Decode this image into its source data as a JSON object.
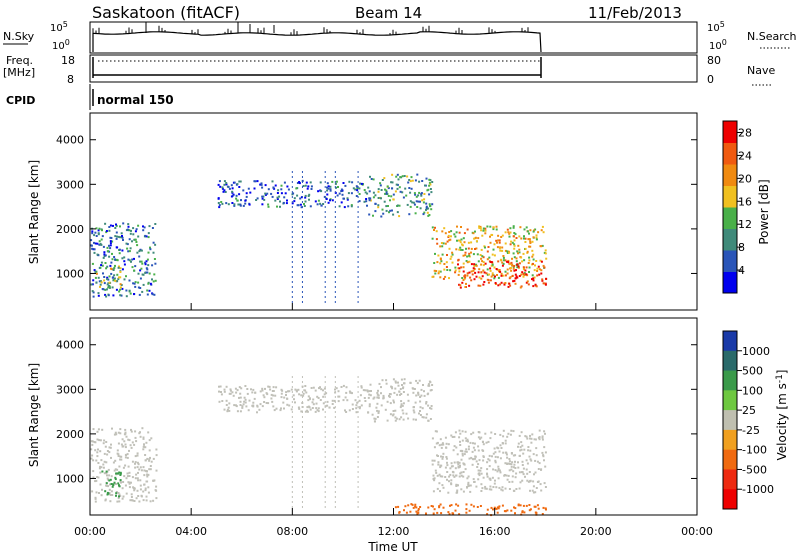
{
  "header": {
    "title": "Saskatoon (fitACF)",
    "beam": "Beam 14",
    "date": "11/Feb/2013"
  },
  "top_panels": {
    "nsky_label": "N.Sky",
    "nsky_ticks": [
      "10^5",
      "10^0"
    ],
    "nsearch_label": "N.Search",
    "freq_label": "Freq.",
    "freq_unit": "[MHz]",
    "freq_ticks": [
      "18",
      "8"
    ],
    "nave_label": "Nave",
    "nave_ticks": [
      "80",
      "0"
    ],
    "cpid_label": "CPID",
    "cpid_value": "normal 150"
  },
  "time_axis": {
    "label": "Time UT",
    "ticks": [
      "00:00",
      "04:00",
      "08:00",
      "12:00",
      "16:00",
      "20:00",
      "00:00"
    ]
  },
  "colors": {
    "power_scale": [
      "#0000ee",
      "#2a55b8",
      "#3f8a7a",
      "#49b049",
      "#f0c020",
      "#f08a10",
      "#f05a10",
      "#ee0000"
    ],
    "velocity_scale": [
      "#1a3aa8",
      "#2a6a6a",
      "#3a9a4a",
      "#6ec840",
      "#bfbfb0",
      "#f0a020",
      "#f06a10",
      "#ee2a10",
      "#ee0000"
    ],
    "grey": "#c0c0b8"
  },
  "chart_data": [
    {
      "type": "heatmap",
      "title": "",
      "xlabel": "",
      "ylabel": "Slant Range [km]",
      "xlim": [
        0,
        24
      ],
      "ylim": [
        180,
        4600
      ],
      "y_ticks": [
        "1000",
        "2000",
        "3000",
        "4000"
      ],
      "colorbar": {
        "label": "Power [dB]",
        "ticks": [
          "4",
          "8",
          "12",
          "16",
          "20",
          "24",
          "28"
        ],
        "range": [
          0,
          30
        ]
      },
      "regions": [
        {
          "t0": 0.0,
          "t1": 2.6,
          "r0": 500,
          "r1": 2150,
          "value": 8
        },
        {
          "t0": 0.2,
          "t1": 1.2,
          "r0": 700,
          "r1": 1200,
          "value": 14
        },
        {
          "t0": 5.0,
          "t1": 11.0,
          "r0": 2500,
          "r1": 3100,
          "value": 6
        },
        {
          "t0": 11.0,
          "t1": 13.5,
          "r0": 2300,
          "r1": 3250,
          "value": 10
        },
        {
          "t0": 13.5,
          "t1": 18.0,
          "r0": 900,
          "r1": 2100,
          "value": 18
        },
        {
          "t0": 14.5,
          "t1": 18.0,
          "r0": 700,
          "r1": 1300,
          "value": 26
        }
      ]
    },
    {
      "type": "heatmap",
      "title": "",
      "xlabel": "Time UT",
      "ylabel": "Slant Range [km]",
      "xlim": [
        0,
        24
      ],
      "ylim": [
        180,
        4600
      ],
      "y_ticks": [
        "1000",
        "2000",
        "3000",
        "4000"
      ],
      "colorbar": {
        "label": "Velocity [m s^-1]",
        "ticks": [
          "1000",
          "500",
          "100",
          "25",
          "-25",
          "-100",
          "-500",
          "-1000"
        ],
        "range": [
          -1200,
          1200
        ]
      },
      "regions": [
        {
          "t0": 0.0,
          "t1": 2.6,
          "r0": 500,
          "r1": 2150,
          "value": 0
        },
        {
          "t0": 0.4,
          "t1": 1.2,
          "r0": 600,
          "r1": 1200,
          "value": 150
        },
        {
          "t0": 5.0,
          "t1": 11.0,
          "r0": 2500,
          "r1": 3100,
          "value": 0
        },
        {
          "t0": 11.0,
          "t1": 13.5,
          "r0": 2300,
          "r1": 3250,
          "value": 0
        },
        {
          "t0": 13.5,
          "t1": 18.0,
          "r0": 700,
          "r1": 2100,
          "value": 0
        },
        {
          "t0": 12.0,
          "t1": 18.0,
          "r0": 200,
          "r1": 450,
          "value": -300
        }
      ]
    }
  ]
}
